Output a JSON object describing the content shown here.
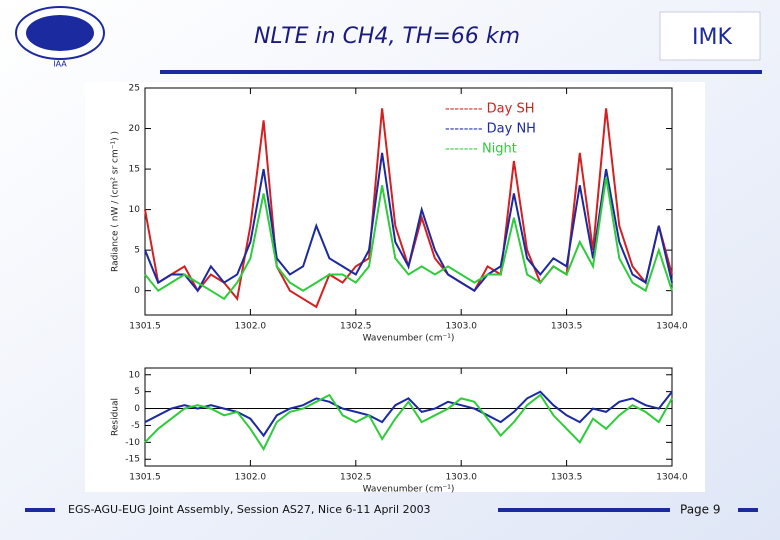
{
  "slide": {
    "title": "NLTE in CH4, TH=66 km",
    "logo_left": "IAA",
    "logo_right": "IMK",
    "footer": "EGS-AGU-EUG Joint Assembly, Session AS27, Nice 6-11 April 2003",
    "page": "Page 9"
  },
  "chart_data": [
    {
      "type": "line",
      "x": [
        1301.5,
        1301.5625,
        1301.625,
        1301.6875,
        1301.75,
        1301.8125,
        1301.875,
        1301.9375,
        1302.0,
        1302.0625,
        1302.125,
        1302.1875,
        1302.25,
        1302.3125,
        1302.375,
        1302.4375,
        1302.5,
        1302.5625,
        1302.625,
        1302.6875,
        1302.75,
        1302.8125,
        1302.875,
        1302.9375,
        1303.0,
        1303.0625,
        1303.125,
        1303.1875,
        1303.25,
        1303.3125,
        1303.375,
        1303.4375,
        1303.5,
        1303.5625,
        1303.625,
        1303.6875,
        1303.75,
        1303.8125,
        1303.875,
        1303.9375,
        1304.0
      ],
      "xlabel": "Wavenumber (cm⁻¹)",
      "ylabel": "Radiance ( nW / (cm² sr cm⁻¹) )",
      "xlim": [
        1301.5,
        1304.0
      ],
      "ylim": [
        -3,
        25
      ],
      "xticks": [
        1301.5,
        {
          "value": 1302,
          "label": "1302.0"
        },
        1302.5,
        {
          "value": 1303,
          "label": "1303.0"
        },
        1303.5,
        {
          "value": 1304,
          "label": "1304.0"
        }
      ],
      "yticks": [
        0,
        5,
        10,
        15,
        20,
        25
      ],
      "series": [
        {
          "name": "-------- Day SH",
          "color": "#d42020",
          "values": [
            10,
            1,
            2,
            3,
            0,
            2,
            1,
            -1,
            8,
            21,
            3,
            0,
            -1,
            -2,
            2,
            1,
            3,
            4,
            22.5,
            8,
            3,
            9,
            4,
            2,
            1,
            0,
            3,
            2,
            16,
            5,
            1,
            3,
            2,
            17,
            5,
            22.5,
            8,
            3,
            1,
            8,
            2
          ]
        },
        {
          "name": "-------- Day NH",
          "color": "#1c2aa0",
          "values": [
            5,
            1,
            2,
            2,
            0,
            3,
            1,
            2,
            6,
            15,
            4,
            2,
            3,
            8,
            4,
            3,
            2,
            5,
            17,
            6,
            3,
            10,
            5,
            2,
            1,
            0,
            2,
            3,
            12,
            4,
            2,
            4,
            3,
            13,
            4,
            15,
            6,
            2,
            1,
            8,
            1
          ]
        },
        {
          "name": "------- Night",
          "color": "#2ecc3a",
          "values": [
            2,
            0,
            1,
            2,
            1,
            0,
            -1,
            1,
            4,
            12,
            3,
            1,
            0,
            1,
            2,
            2,
            1,
            3,
            13,
            4,
            2,
            3,
            2,
            3,
            2,
            1,
            2,
            2,
            9,
            2,
            1,
            3,
            2,
            6,
            3,
            14,
            4,
            1,
            0,
            5,
            0
          ]
        }
      ]
    },
    {
      "type": "line",
      "x": [
        1301.5,
        1301.5625,
        1301.625,
        1301.6875,
        1301.75,
        1301.8125,
        1301.875,
        1301.9375,
        1302.0,
        1302.0625,
        1302.125,
        1302.1875,
        1302.25,
        1302.3125,
        1302.375,
        1302.4375,
        1302.5,
        1302.5625,
        1302.625,
        1302.6875,
        1302.75,
        1302.8125,
        1302.875,
        1302.9375,
        1303.0,
        1303.0625,
        1303.125,
        1303.1875,
        1303.25,
        1303.3125,
        1303.375,
        1303.4375,
        1303.5,
        1303.5625,
        1303.625,
        1303.6875,
        1303.75,
        1303.8125,
        1303.875,
        1303.9375,
        1304.0
      ],
      "xlabel": "Wavenumber (cm⁻¹)",
      "ylabel": "Residual",
      "xlim": [
        1301.5,
        1304.0
      ],
      "ylim": [
        -17,
        12
      ],
      "zero_line": true,
      "xticks": [
        1301.5,
        {
          "value": 1302,
          "label": "1302.0"
        },
        1302.5,
        {
          "value": 1303,
          "label": "1303.0"
        },
        1303.5,
        {
          "value": 1304,
          "label": "1304.0"
        }
      ],
      "yticks": [
        -15,
        -10,
        -5,
        0,
        5,
        10
      ],
      "series": [
        {
          "color": "#1c2aa0",
          "values": [
            -4,
            -2,
            0,
            1,
            0,
            1,
            0,
            -1,
            -3,
            -8,
            -2,
            0,
            1,
            3,
            2,
            0,
            -1,
            -2,
            -4,
            1,
            3,
            -1,
            0,
            2,
            1,
            0,
            -2,
            -4,
            -1,
            3,
            5,
            1,
            -2,
            -4,
            0,
            -1,
            2,
            3,
            1,
            0,
            5
          ]
        },
        {
          "color": "#2ecc3a",
          "values": [
            -10,
            -6,
            -3,
            0,
            1,
            0,
            -2,
            -1,
            -6,
            -12,
            -4,
            -1,
            0,
            2,
            4,
            -2,
            -4,
            -2,
            -9,
            -3,
            2,
            -4,
            -2,
            0,
            3,
            2,
            -3,
            -8,
            -4,
            1,
            4,
            -2,
            -6,
            -10,
            -3,
            -6,
            -2,
            1,
            -1,
            -4,
            3
          ]
        }
      ]
    }
  ]
}
